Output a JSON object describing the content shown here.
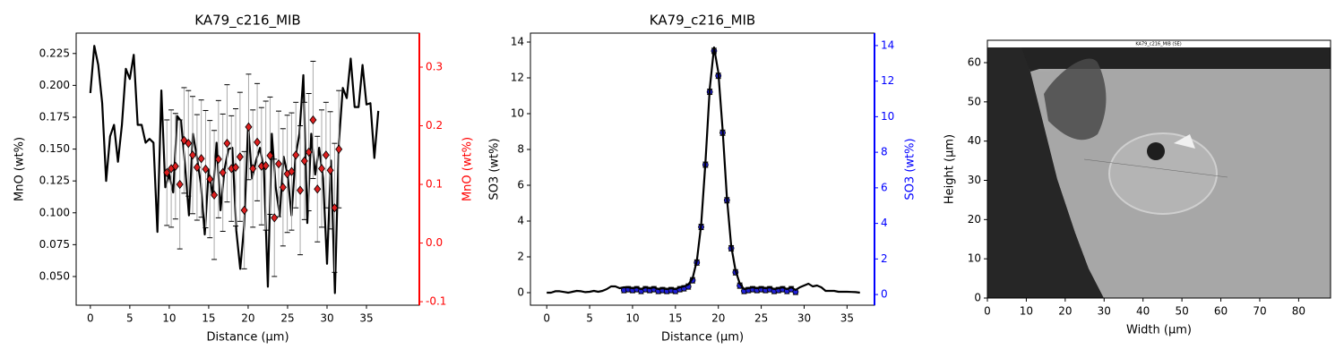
{
  "chart_data": [
    {
      "type": "line",
      "title": "KA79_c216_MIB",
      "xlabel": "Distance (µm)",
      "ylabel": "MnO (wt%)",
      "y2label": "MnO (wt%)",
      "y2color": "#ff0000",
      "xlim": [
        -1.8,
        41.7
      ],
      "xticks": [
        0,
        5,
        10,
        15,
        20,
        25,
        30,
        35
      ],
      "ylim": [
        0.0275,
        0.241
      ],
      "yticks": [
        {
          "value": 0.05,
          "label": "0.050"
        },
        0.075,
        {
          "value": 0.1,
          "label": "0.100"
        },
        0.125,
        {
          "value": 0.15,
          "label": "0.150"
        },
        0.175,
        {
          "value": 0.2,
          "label": "0.200"
        },
        0.225
      ],
      "y2lim": [
        -0.106,
        0.358
      ],
      "y2ticks": [
        -0.1,
        {
          "value": 0,
          "label": "0.0"
        },
        0.1,
        0.2,
        0.3
      ],
      "series": [
        {
          "color": "#000000",
          "x": [
            0,
            0.5,
            1,
            1.5,
            2,
            2.5,
            3,
            3.5,
            4,
            4.5,
            5,
            5.5,
            6,
            6.5,
            7,
            7.5,
            8,
            8.5,
            9,
            9.5,
            10,
            10.5,
            11,
            11.5,
            12,
            12.5,
            13,
            13.5,
            14,
            14.5,
            15,
            15.5,
            16,
            16.5,
            17,
            17.5,
            18,
            18.5,
            19,
            19.5,
            20,
            20.5,
            21,
            21.5,
            22,
            22.5,
            23,
            23.5,
            24,
            24.5,
            25,
            25.5,
            26,
            26.5,
            27,
            27.5,
            28,
            28.5,
            29,
            29.5,
            30,
            30.5,
            31,
            31.5,
            32,
            32.5,
            33,
            33.5,
            34,
            34.5,
            35,
            35.5,
            36,
            36.5
          ],
          "values": [
            0.194,
            0.231,
            0.216,
            0.186,
            0.125,
            0.16,
            0.169,
            0.14,
            0.169,
            0.213,
            0.205,
            0.224,
            0.169,
            0.169,
            0.155,
            0.158,
            0.155,
            0.085,
            0.196,
            0.12,
            0.13,
            0.116,
            0.176,
            0.172,
            0.137,
            0.098,
            0.162,
            0.144,
            0.123,
            0.083,
            0.134,
            0.113,
            0.155,
            0.102,
            0.134,
            0.15,
            0.151,
            0.086,
            0.056,
            0.09,
            0.169,
            0.127,
            0.141,
            0.151,
            0.134,
            0.042,
            0.162,
            0.12,
            0.098,
            0.144,
            0.13,
            0.098,
            0.144,
            0.162,
            0.208,
            0.092,
            0.162,
            0.13,
            0.151,
            0.127,
            0.06,
            0.141,
            0.037,
            0.155,
            0.198,
            0.19,
            0.221,
            0.183,
            0.183,
            0.216,
            0.185,
            0.186,
            0.143,
            0.18
          ]
        },
        {
          "color": "#dc1e1e",
          "axis": "y2",
          "marker": "diamond",
          "errorcolor": "#aaaaaa",
          "x": [
            9.7,
            10.25,
            10.79,
            11.34,
            11.88,
            12.43,
            12.97,
            13.52,
            14.06,
            14.61,
            15.15,
            15.7,
            16.24,
            16.79,
            17.33,
            17.88,
            18.42,
            18.97,
            19.51,
            20.06,
            20.6,
            21.15,
            21.69,
            22.24,
            22.78,
            23.33,
            23.87,
            24.42,
            24.96,
            25.51,
            26.05,
            26.6,
            27.14,
            27.69,
            28.23,
            28.78,
            29.32,
            29.87,
            30.41,
            30.96,
            31.5
          ],
          "values": [
            0.12,
            0.127,
            0.131,
            0.1,
            0.175,
            0.17,
            0.15,
            0.129,
            0.144,
            0.126,
            0.109,
            0.082,
            0.143,
            0.12,
            0.17,
            0.127,
            0.129,
            0.147,
            0.056,
            0.198,
            0.127,
            0.172,
            0.131,
            0.132,
            0.149,
            0.043,
            0.135,
            0.095,
            0.118,
            0.122,
            0.15,
            0.09,
            0.14,
            0.155,
            0.21,
            0.092,
            0.127,
            0.15,
            0.124,
            0.06,
            0.16
          ],
          "errors": [
            0.09,
            0.1,
            0.09,
            0.11,
            0.09,
            0.09,
            0.1,
            0.09,
            0.1,
            0.1,
            0.1,
            0.11,
            0.1,
            0.1,
            0.1,
            0.09,
            0.1,
            0.11,
            0.1,
            0.09,
            0.1,
            0.1,
            0.1,
            0.11,
            0.1,
            0.1,
            0.09,
            0.1,
            0.1,
            0.1,
            0.09,
            0.11,
            0.1,
            0.1,
            0.1,
            0.09,
            0.1,
            0.09,
            0.1,
            0.11,
            0.1
          ]
        }
      ]
    },
    {
      "type": "line",
      "title": "KA79_c216_MIB",
      "xlabel": "Distance (µm)",
      "ylabel": "SO3 (wt%)",
      "y2label": "SO3 (wt%)",
      "y2color": "#0000ff",
      "xlim": [
        -1.9,
        38.2
      ],
      "xticks": [
        0,
        5,
        10,
        15,
        20,
        25,
        30,
        35
      ],
      "ylim": [
        -0.7,
        14.5
      ],
      "yticks": [
        0,
        2,
        4,
        6,
        8,
        10,
        12,
        14
      ],
      "y2lim": [
        -0.6,
        14.7
      ],
      "y2ticks": [
        0,
        2,
        4,
        6,
        8,
        10,
        12,
        14
      ],
      "series": [
        {
          "color": "#1f1fd6",
          "axis": "y2",
          "marker": "circle",
          "errorcolor": "#000000",
          "x": [
            9,
            9.5,
            10,
            10.5,
            11,
            11.5,
            12,
            12.5,
            13,
            13.5,
            14,
            14.5,
            15,
            15.5,
            16,
            16.5,
            17,
            17.5,
            18,
            18.5,
            19,
            19.5,
            20,
            20.5,
            21,
            21.5,
            22,
            22.5,
            23,
            23.5,
            24,
            24.5,
            25,
            25.5,
            26,
            26.5,
            27,
            27.5,
            28,
            28.5,
            29
          ],
          "values": [
            0.25,
            0.3,
            0.25,
            0.3,
            0.2,
            0.3,
            0.25,
            0.3,
            0.2,
            0.25,
            0.2,
            0.25,
            0.2,
            0.3,
            0.35,
            0.45,
            0.8,
            1.8,
            3.8,
            7.3,
            11.4,
            13.7,
            12.3,
            9.1,
            5.3,
            2.6,
            1.25,
            0.5,
            0.2,
            0.25,
            0.3,
            0.25,
            0.3,
            0.25,
            0.3,
            0.2,
            0.25,
            0.3,
            0.2,
            0.3,
            0.15
          ],
          "errors": [
            0.15,
            0.15,
            0.15,
            0.15,
            0.15,
            0.15,
            0.15,
            0.15,
            0.15,
            0.15,
            0.15,
            0.15,
            0.15,
            0.15,
            0.15,
            0.15,
            0.15,
            0.15,
            0.15,
            0.15,
            0.15,
            0.15,
            0.15,
            0.15,
            0.15,
            0.15,
            0.15,
            0.15,
            0.15,
            0.15,
            0.15,
            0.15,
            0.15,
            0.15,
            0.15,
            0.15,
            0.15,
            0.15,
            0.15,
            0.15,
            0.15
          ]
        },
        {
          "color": "#000000",
          "x": [
            0,
            0.5,
            1,
            1.5,
            2,
            2.5,
            3,
            3.5,
            4,
            4.5,
            5,
            5.5,
            6,
            6.5,
            7,
            7.5,
            8,
            8.5,
            9,
            9.5,
            10,
            10.5,
            11,
            11.5,
            12,
            12.5,
            13,
            13.5,
            14,
            14.5,
            15,
            15.5,
            16,
            16.5,
            17,
            17.5,
            18,
            18.5,
            19,
            19.5,
            20,
            20.5,
            21,
            21.5,
            22,
            22.5,
            23,
            23.5,
            24,
            24.5,
            25,
            25.5,
            26,
            26.5,
            27,
            27.5,
            28,
            28.5,
            29,
            29.5,
            30,
            30.5,
            31,
            31.5,
            32,
            32.5,
            33,
            33.5,
            34,
            34.5,
            35,
            35.5,
            36,
            36.5
          ],
          "values": [
            0,
            0,
            0.08,
            0.08,
            0.04,
            0,
            0.05,
            0.1,
            0.08,
            0.03,
            0.05,
            0.1,
            0.05,
            0.1,
            0.2,
            0.35,
            0.35,
            0.25,
            0.3,
            0.3,
            0.25,
            0.3,
            0.2,
            0.3,
            0.25,
            0.3,
            0.2,
            0.25,
            0.2,
            0.25,
            0.2,
            0.3,
            0.35,
            0.45,
            0.8,
            1.8,
            3.8,
            7.3,
            11.4,
            13.7,
            12.3,
            9.1,
            5.3,
            2.6,
            1.25,
            0.5,
            0.2,
            0.25,
            0.3,
            0.25,
            0.3,
            0.25,
            0.3,
            0.2,
            0.25,
            0.3,
            0.2,
            0.3,
            0.15,
            0.3,
            0.4,
            0.5,
            0.35,
            0.4,
            0.3,
            0.1,
            0.1,
            0.1,
            0.05,
            0.05,
            0.05,
            0.04,
            0.03,
            0
          ]
        }
      ]
    },
    {
      "type": "image",
      "image_text": "KA79_c216_MIB (SE)",
      "xlabel": "Width (µm)",
      "ylabel": "Height (µm)",
      "xlim": [
        0,
        88.2
      ],
      "xticks": [
        0,
        10,
        20,
        30,
        40,
        50,
        60,
        70,
        80
      ],
      "ylim": [
        0,
        65.7
      ],
      "yticks": [
        0,
        10,
        20,
        30,
        40,
        50,
        60
      ]
    }
  ]
}
